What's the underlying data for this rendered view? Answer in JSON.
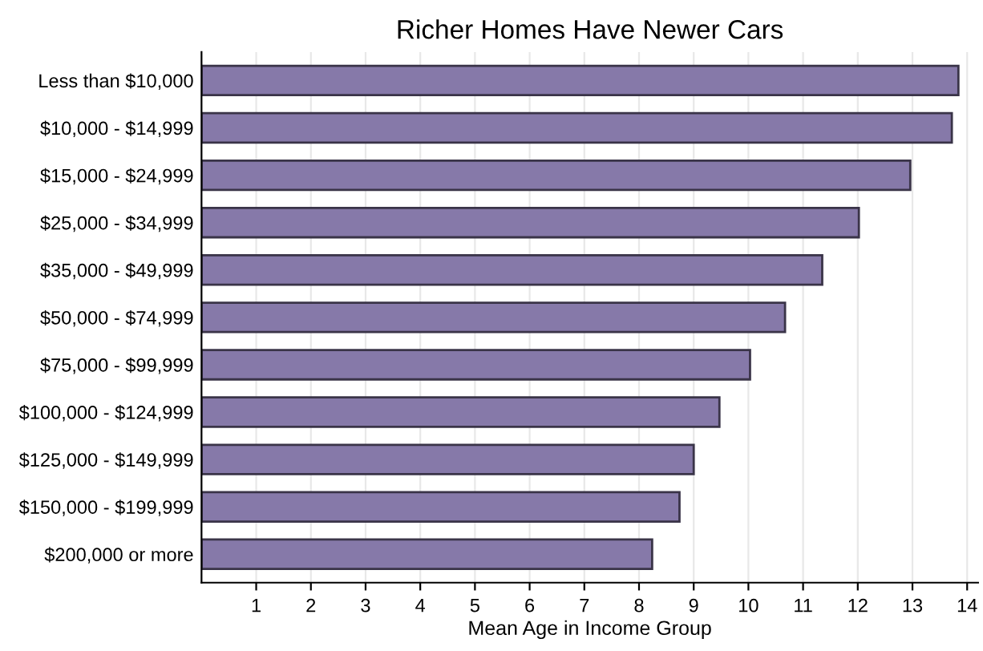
{
  "chart_data": {
    "type": "bar",
    "orientation": "horizontal",
    "title": "Richer Homes Have Newer Cars",
    "xlabel": "Mean Age in Income Group",
    "categories": [
      "Less than $10,000",
      "$10,000 - $14,999",
      "$15,000 - $24,999",
      "$25,000 - $34,999",
      "$35,000 - $49,999",
      "$50,000 - $74,999",
      "$75,000 - $99,999",
      "$100,000 - $124,999",
      "$125,000 - $149,999",
      "$150,000 - $199,999",
      "$200,000 or more"
    ],
    "values": [
      13.84,
      13.72,
      12.96,
      12.02,
      11.35,
      10.67,
      10.03,
      9.47,
      9.0,
      8.74,
      8.24
    ],
    "color": "#8679a9",
    "xlim": [
      0,
      14.2
    ],
    "xticks": [
      1,
      2,
      3,
      4,
      5,
      6,
      7,
      8,
      9,
      10,
      11,
      12,
      13,
      14
    ],
    "grid": "x"
  }
}
